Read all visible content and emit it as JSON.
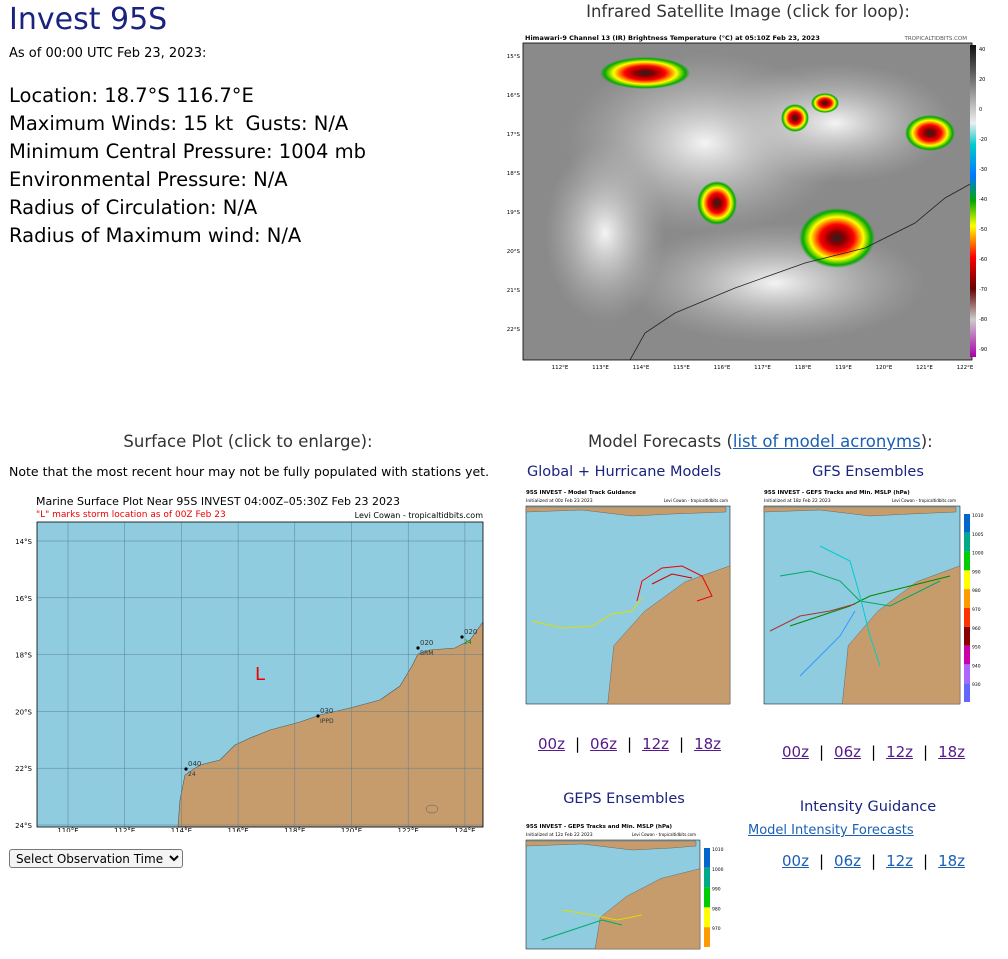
{
  "header": {
    "title": "Invest 95S",
    "as_of": "As of 00:00 UTC Feb 23, 2023:"
  },
  "storm_info": [
    "Location: 18.7°S 116.7°E",
    "Maximum Winds: 15 kt  Gusts: N/A",
    "Minimum Central Pressure: 1004 mb",
    "Environmental Pressure: N/A",
    "Radius of Circulation: N/A",
    "Radius of Maximum wind: N/A"
  ],
  "satellite": {
    "heading": "Infrared Satellite Image (click for loop):",
    "image_title": "Himawari-9 Channel 13 (IR) Brightness Temperature (°C) at 05:10Z Feb 23, 2023",
    "credit": "TROPICALTIDBITS.COM",
    "lat_labels": [
      "15°S",
      "16°S",
      "17°S",
      "18°S",
      "19°S",
      "20°S",
      "21°S",
      "22°S"
    ],
    "lon_labels": [
      "112°E",
      "113°E",
      "114°E",
      "115°E",
      "116°E",
      "117°E",
      "118°E",
      "119°E",
      "120°E",
      "121°E",
      "122°E"
    ],
    "colorbar_labels": [
      "40",
      "20",
      "0",
      "-20",
      "-30",
      "-40",
      "-50",
      "-60",
      "-70",
      "-80",
      "-90"
    ]
  },
  "surface": {
    "heading": "Surface Plot (click to enlarge):",
    "note": "Note that the most recent hour may not be fully populated with stations yet.",
    "plot_title": "Marine Surface Plot Near 95S INVEST 04:00Z–05:30Z Feb 23 2023",
    "subtitle": "\"L\" marks storm location as of 00Z Feb 23",
    "credit": "Levi Cowan - tropicaltidbits.com",
    "lat_labels": [
      "14°S",
      "16°S",
      "18°S",
      "20°S",
      "22°S",
      "24°S"
    ],
    "lon_labels": [
      "110°E",
      "112°E",
      "114°E",
      "116°E",
      "118°E",
      "120°E",
      "122°E",
      "124°E"
    ],
    "storm_marker": "L",
    "stations": [
      {
        "code": "020",
        "name": "BRM"
      },
      {
        "code": "020",
        "name": "24"
      },
      {
        "code": "030",
        "name": "IPPD"
      },
      {
        "code": "040",
        "name": "24"
      }
    ],
    "select": "Select Observation Time..."
  },
  "models": {
    "heading_prefix": "Model Forecasts (",
    "acronyms_link": "list of model acronyms",
    "heading_suffix": "):",
    "separator": "|",
    "global": {
      "heading": "Global + Hurricane Models",
      "image_title": "95S INVEST - Model Track Guidance",
      "image_init": "Initialized at 00z Feb 23 2023",
      "image_credit": "Levi Cowan - tropicaltidbits.com",
      "links": [
        "00z",
        "06z",
        "12z",
        "18z"
      ]
    },
    "gefs": {
      "heading": "GFS Ensembles",
      "image_title": "95S INVEST - GEFS Tracks and Min. MSLP (hPa)",
      "image_init": "Initialized at 18z Feb 22 2023",
      "image_credit": "Levi Cowan - tropicaltidbits.com",
      "colorbar_labels": [
        "1010",
        "1005",
        "1000",
        "990",
        "980",
        "970",
        "960",
        "950",
        "940",
        "930"
      ],
      "links": [
        "00z",
        "06z",
        "12z",
        "18z"
      ]
    },
    "geps": {
      "heading": "GEPS Ensembles",
      "image_title": "95S INVEST - GEPS Tracks and Min. MSLP (hPa)",
      "image_init": "Initialized at 12z Feb 22 2023",
      "image_credit": "Levi Cowan - tropicaltidbits.com",
      "colorbar_labels": [
        "1010",
        "1000",
        "990",
        "980",
        "970"
      ]
    },
    "intensity": {
      "heading": "Intensity Guidance",
      "link": "Model Intensity Forecasts",
      "links": [
        "00z",
        "06z",
        "12z",
        "18z"
      ]
    }
  }
}
